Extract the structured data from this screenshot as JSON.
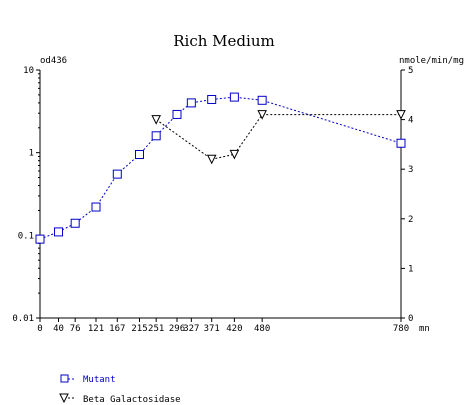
{
  "chart_data": {
    "type": "line",
    "title": "Rich Medium",
    "ylabel_left": "od436",
    "ylabel_right": "nmole/min/mg",
    "x_unit_label": "mn",
    "x_ticks": [
      0,
      40,
      76,
      121,
      167,
      215,
      251,
      296,
      327,
      371,
      420,
      480,
      780
    ],
    "x_tick_labels": [
      "0",
      "40",
      "76",
      "121",
      "167",
      "215",
      "251",
      "296",
      "327",
      "371",
      "420",
      "480",
      "780"
    ],
    "xlim": [
      0,
      780
    ],
    "y_left": {
      "scale": "log",
      "lim": [
        0.01,
        10
      ],
      "ticks": [
        0.01,
        0.1,
        1,
        10
      ],
      "tick_labels": [
        "0.01",
        "0.1",
        "1",
        "10"
      ]
    },
    "y_right": {
      "scale": "linear",
      "lim": [
        0,
        5
      ],
      "ticks": [
        0,
        1,
        2,
        3,
        4,
        5
      ],
      "tick_labels": [
        "0",
        "1",
        "2",
        "3",
        "4",
        "5"
      ]
    },
    "series": [
      {
        "name": "Mutant",
        "axis": "left",
        "marker": "square",
        "color": "#0000cc",
        "x": [
          0,
          40,
          76,
          121,
          167,
          215,
          251,
          296,
          327,
          371,
          420,
          480,
          780
        ],
        "y": [
          0.09,
          0.11,
          0.14,
          0.22,
          0.55,
          0.95,
          1.6,
          2.9,
          4.0,
          4.4,
          4.7,
          4.3,
          1.3
        ]
      },
      {
        "name": "Beta Galactosidase",
        "axis": "right",
        "marker": "triangle-down",
        "color": "#000000",
        "x": [
          251,
          371,
          420,
          480,
          780
        ],
        "y": [
          4.0,
          3.2,
          3.3,
          4.1,
          4.1
        ]
      }
    ],
    "legend_position": "bottom-left"
  },
  "colors": {
    "mutant": "#0000cc",
    "beta": "#000000",
    "axis": "#000000"
  }
}
